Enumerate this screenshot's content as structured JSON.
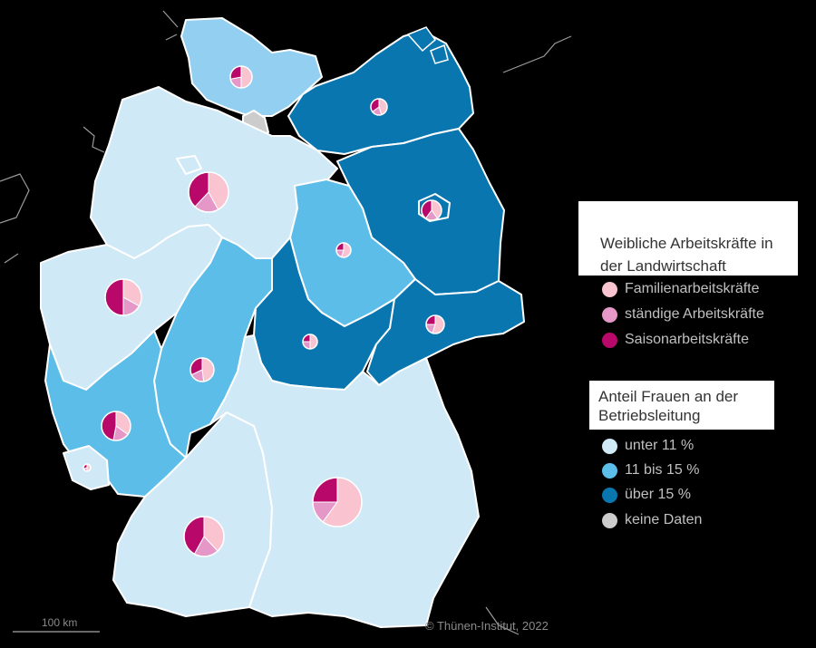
{
  "legend_pies": {
    "title": "Weibliche Arbeitskräfte in der Landwirtschaft",
    "items": [
      {
        "label": "Familienarbeitskräfte",
        "color": "#f9c3cf"
      },
      {
        "label": "ständige Arbeitskräfte",
        "color": "#e597c8"
      },
      {
        "label": "Saisonarbeitskräfte",
        "color": "#b8086a"
      }
    ]
  },
  "legend_fill": {
    "title": "Anteil Frauen an der Betriebsleitung",
    "items": [
      {
        "label": "unter 11 %",
        "color": "#cfe9f7"
      },
      {
        "label": "11 bis 15 %",
        "color": "#5cbde9"
      },
      {
        "label": "über 15 %",
        "color": "#0a76b0"
      },
      {
        "label": "keine Daten",
        "color": "#cccccc"
      }
    ]
  },
  "scale_bar": "100 km",
  "copyright": "© Thünen-Institut, 2022"
}
